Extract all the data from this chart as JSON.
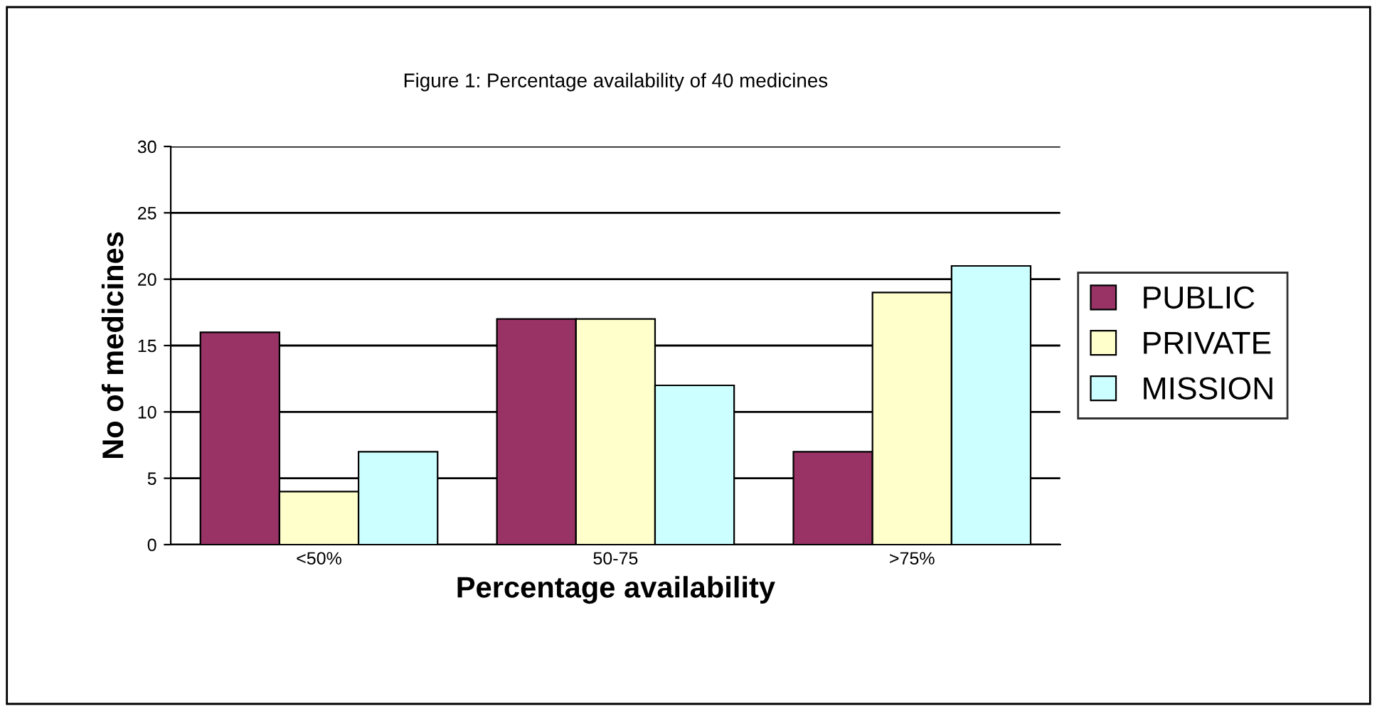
{
  "chart_data": {
    "type": "bar",
    "title": "Figure 1: Percentage availability of 40 medicines",
    "xlabel": "Percentage availability",
    "ylabel": "No of medicines",
    "categories": [
      "<50%",
      "50-75",
      ">75%"
    ],
    "series": [
      {
        "name": "PUBLIC",
        "color": "#993366",
        "values": [
          16,
          17,
          7
        ]
      },
      {
        "name": "PRIVATE",
        "color": "#ffffcc",
        "values": [
          4,
          17,
          19
        ]
      },
      {
        "name": "MISSION",
        "color": "#ccffff",
        "values": [
          7,
          12,
          21
        ]
      }
    ],
    "ylim": [
      0,
      30
    ],
    "yticks": [
      0,
      5,
      10,
      15,
      20,
      25,
      30
    ],
    "grid": "y",
    "legend": "right"
  }
}
